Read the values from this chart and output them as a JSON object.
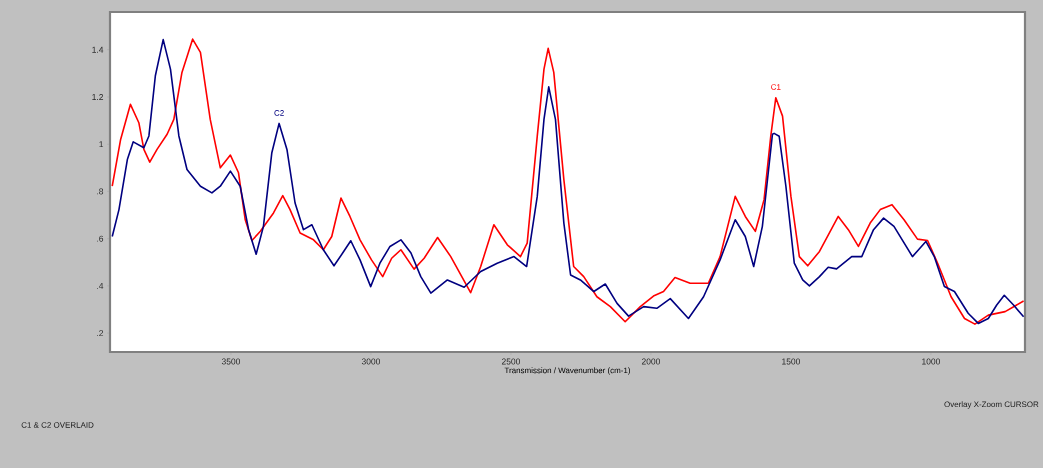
{
  "chart_data": {
    "type": "line",
    "xlabel": "Transmission / Wavenumber (cm-1)",
    "xlim": [
      3932,
      664
    ],
    "ylim": [
      0.12,
      1.56
    ],
    "xticks": [
      3500,
      3000,
      2500,
      2000,
      1500,
      1000
    ],
    "yticks": [
      {
        "value": 0.2,
        "label": ".2"
      },
      {
        "value": 0.4,
        "label": ".4"
      },
      {
        "value": 0.6,
        "label": ".6"
      },
      {
        "value": 0.8,
        "label": ".8"
      },
      1,
      1.2,
      1.4
    ],
    "grid": false,
    "line_style": "solid",
    "marker": "none",
    "annotations": [
      {
        "text": "C2",
        "x": 3328,
        "y": 1.09
      },
      {
        "text": "C1",
        "x": 1554,
        "y": 1.2
      },
      "Overlay X-Zoom CURSOR",
      "C1 & C2 OVERLAID"
    ],
    "series": [
      {
        "color": "#ff0000",
        "x": [
          3924,
          3894,
          3859,
          3829,
          3811,
          3790,
          3764,
          3728,
          3704,
          3675,
          3637,
          3609,
          3574,
          3538,
          3502,
          3473,
          3449,
          3425,
          3395,
          3348,
          3315,
          3289,
          3253,
          3205,
          3170,
          3140,
          3107,
          3075,
          3039,
          2998,
          2958,
          2926,
          2893,
          2846,
          2810,
          2762,
          2715,
          2644,
          2608,
          2561,
          2513,
          2466,
          2442,
          2406,
          2382,
          2367,
          2347,
          2311,
          2276,
          2240,
          2193,
          2145,
          2092,
          2038,
          1991,
          1955,
          1914,
          1860,
          1795,
          1753,
          1699,
          1663,
          1627,
          1596,
          1572,
          1554,
          1530,
          1500,
          1470,
          1440,
          1398,
          1331,
          1295,
          1259,
          1217,
          1181,
          1139,
          1096,
          1048,
          1012,
          976,
          928,
          880,
          843,
          795,
          735,
          669
        ],
        "values": [
          0.822,
          1.02,
          1.169,
          1.091,
          0.978,
          0.924,
          0.978,
          1.042,
          1.105,
          1.304,
          1.445,
          1.389,
          1.105,
          0.9,
          0.954,
          0.879,
          0.68,
          0.592,
          0.631,
          0.709,
          0.782,
          0.723,
          0.624,
          0.595,
          0.553,
          0.609,
          0.772,
          0.694,
          0.595,
          0.51,
          0.439,
          0.517,
          0.553,
          0.471,
          0.517,
          0.605,
          0.524,
          0.371,
          0.482,
          0.659,
          0.574,
          0.524,
          0.581,
          1.034,
          1.318,
          1.406,
          1.304,
          0.85,
          0.482,
          0.439,
          0.354,
          0.312,
          0.248,
          0.312,
          0.357,
          0.376,
          0.435,
          0.411,
          0.411,
          0.524,
          0.779,
          0.694,
          0.631,
          0.765,
          1.034,
          1.197,
          1.119,
          0.779,
          0.524,
          0.485,
          0.546,
          0.694,
          0.638,
          0.567,
          0.666,
          0.723,
          0.744,
          0.68,
          0.598,
          0.592,
          0.496,
          0.354,
          0.262,
          0.238,
          0.276,
          0.291,
          0.336
        ]
      },
      {
        "color": "#000080",
        "x": [
          3924,
          3900,
          3870,
          3849,
          3811,
          3793,
          3770,
          3742,
          3716,
          3686,
          3657,
          3609,
          3568,
          3538,
          3502,
          3467,
          3437,
          3410,
          3384,
          3354,
          3328,
          3300,
          3271,
          3241,
          3211,
          3170,
          3132,
          3101,
          3072,
          3039,
          3001,
          2968,
          2932,
          2893,
          2857,
          2822,
          2786,
          2727,
          2667,
          2608,
          2549,
          2489,
          2444,
          2406,
          2382,
          2365,
          2341,
          2311,
          2287,
          2252,
          2204,
          2163,
          2121,
          2080,
          2026,
          1979,
          1931,
          1866,
          1812,
          1753,
          1699,
          1663,
          1633,
          1602,
          1566,
          1560,
          1542,
          1518,
          1488,
          1458,
          1434,
          1398,
          1367,
          1337,
          1283,
          1247,
          1205,
          1169,
          1132,
          1066,
          1018,
          988,
          952,
          916,
          867,
          831,
          795,
          765,
          738,
          705,
          669
        ],
        "values": [
          0.609,
          0.723,
          0.935,
          1.01,
          0.985,
          1.035,
          1.29,
          1.443,
          1.318,
          1.035,
          0.893,
          0.822,
          0.794,
          0.822,
          0.886,
          0.822,
          0.638,
          0.534,
          0.652,
          0.964,
          1.088,
          0.978,
          0.751,
          0.638,
          0.659,
          0.553,
          0.485,
          0.539,
          0.591,
          0.51,
          0.397,
          0.496,
          0.567,
          0.595,
          0.539,
          0.439,
          0.369,
          0.425,
          0.394,
          0.461,
          0.496,
          0.524,
          0.482,
          0.779,
          1.105,
          1.243,
          1.105,
          0.666,
          0.446,
          0.425,
          0.376,
          0.408,
          0.326,
          0.272,
          0.312,
          0.305,
          0.346,
          0.262,
          0.354,
          0.51,
          0.68,
          0.609,
          0.482,
          0.652,
          1.042,
          1.046,
          1.034,
          0.822,
          0.496,
          0.425,
          0.4,
          0.439,
          0.479,
          0.472,
          0.524,
          0.524,
          0.638,
          0.687,
          0.652,
          0.524,
          0.588,
          0.524,
          0.397,
          0.376,
          0.284,
          0.241,
          0.262,
          0.319,
          0.36,
          0.319,
          0.269
        ]
      }
    ]
  }
}
